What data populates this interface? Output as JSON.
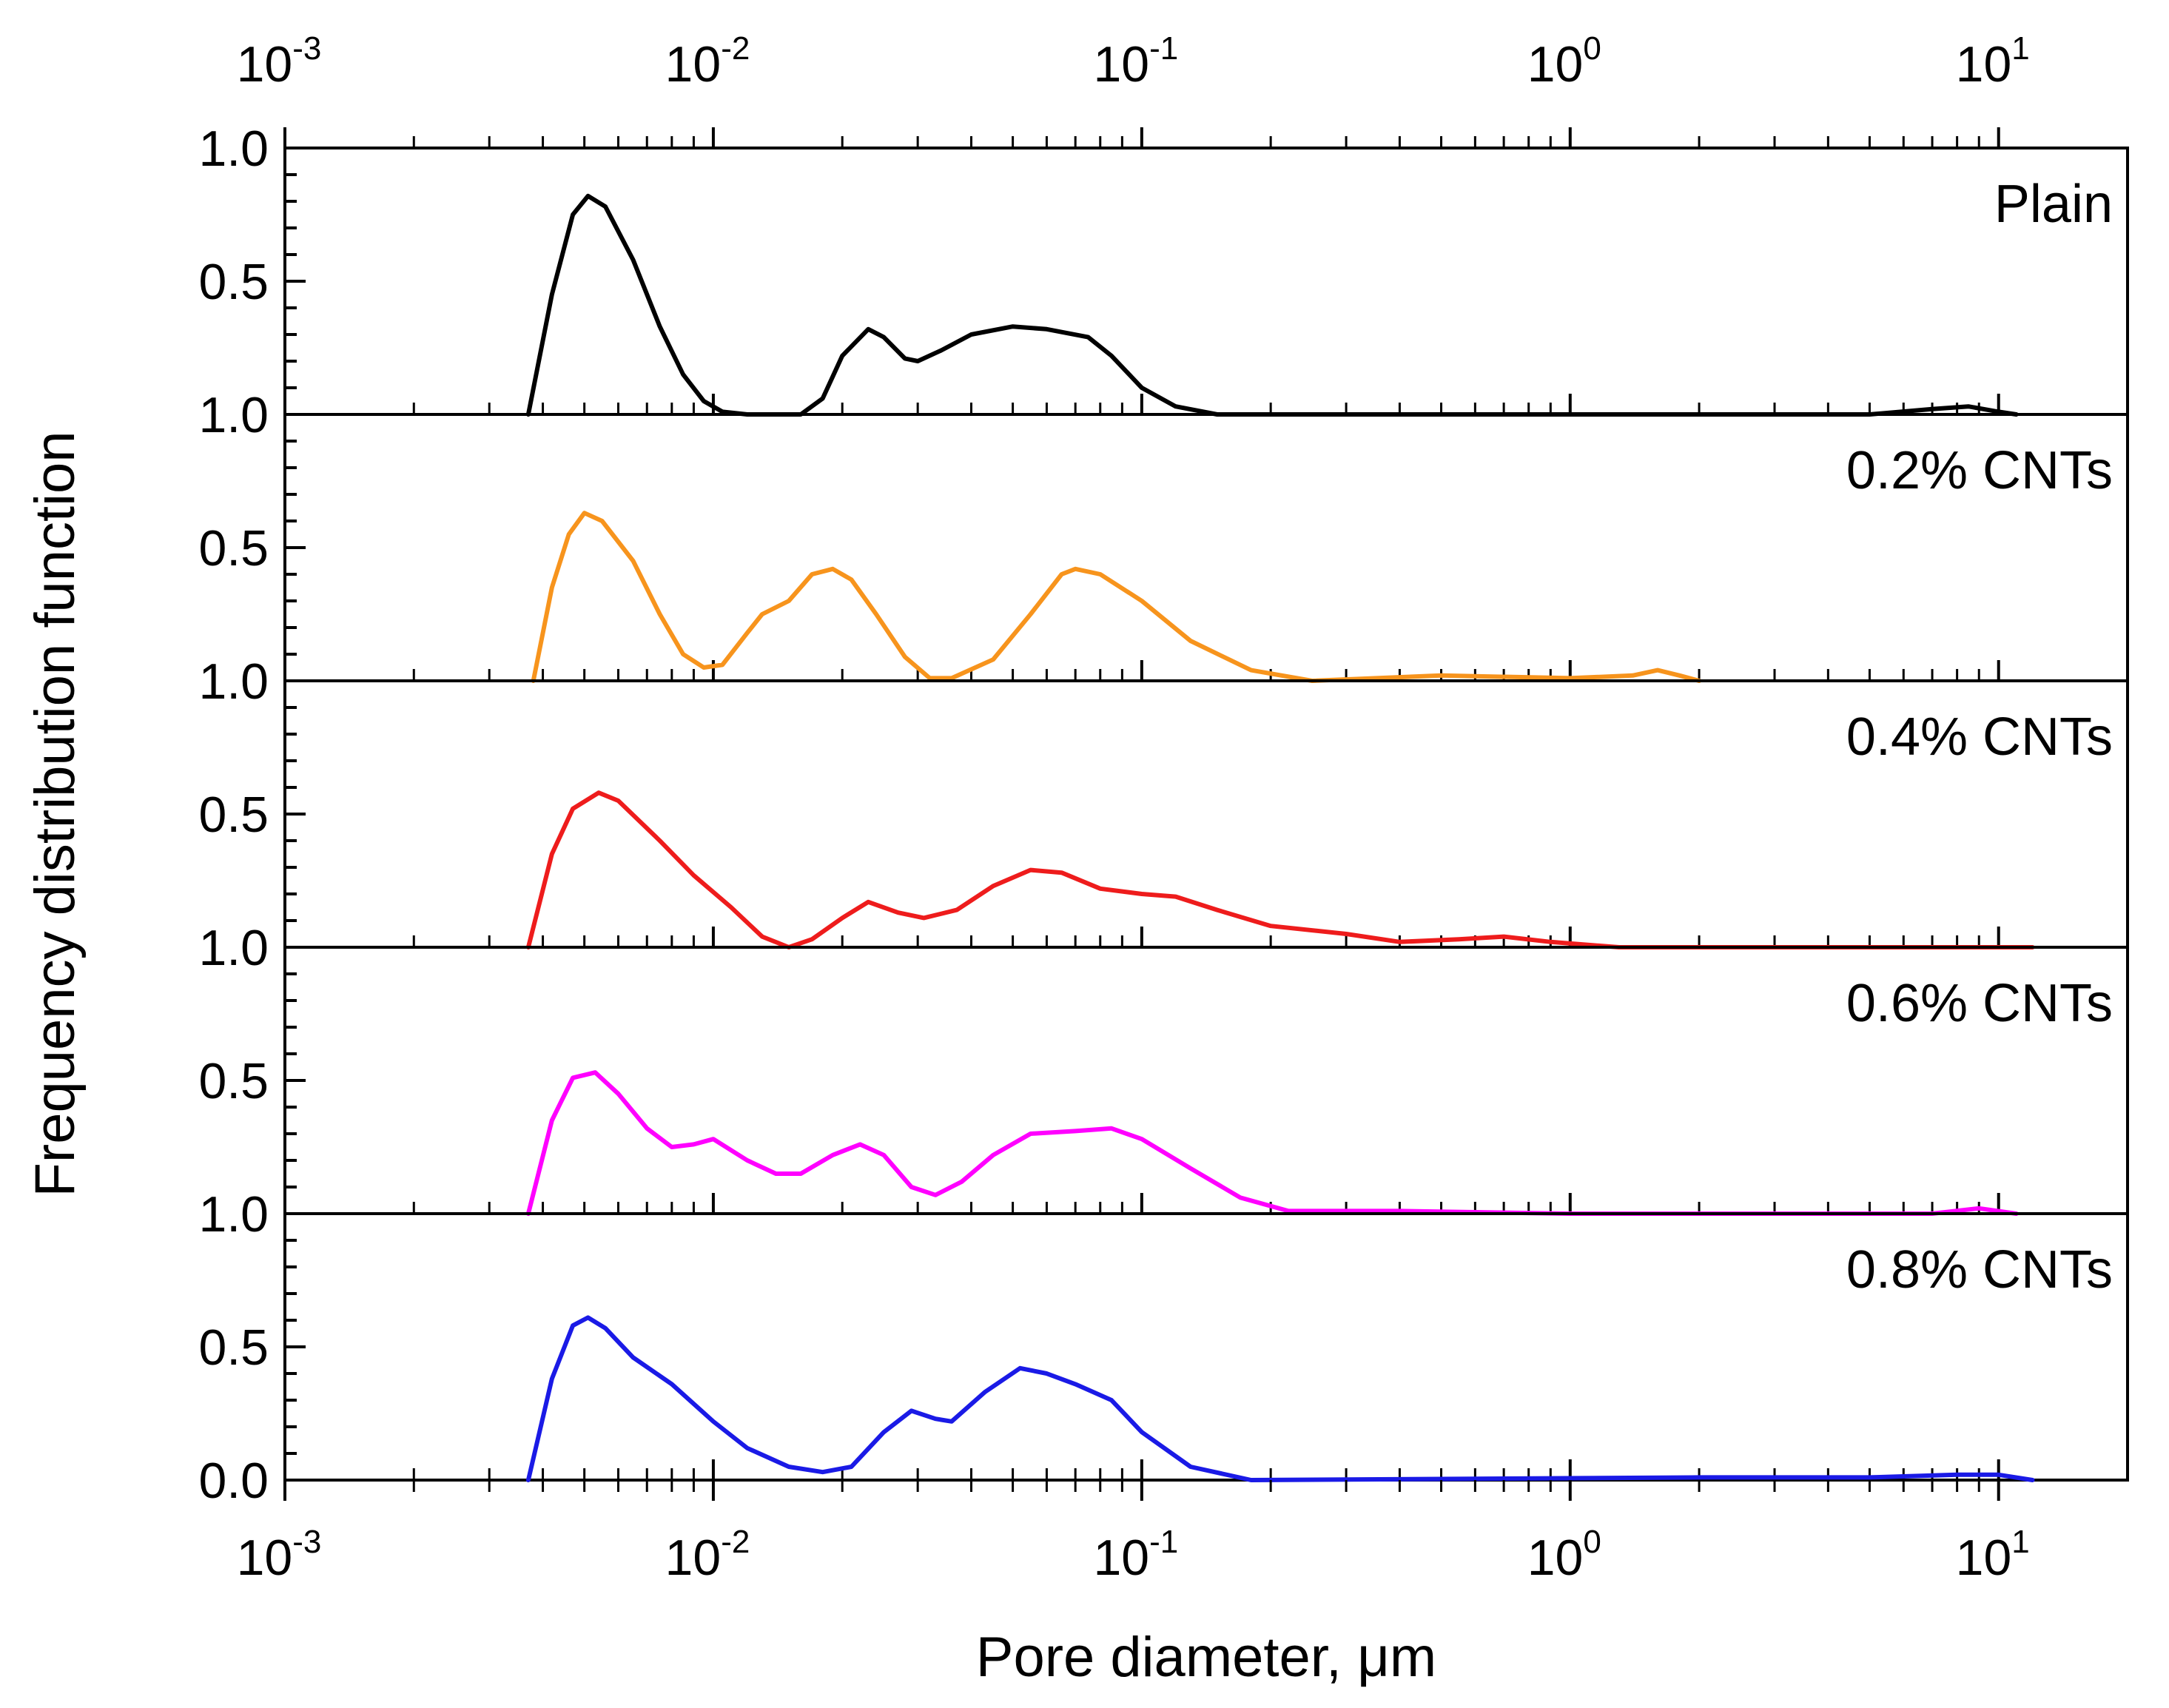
{
  "chart_data": {
    "type": "line",
    "layout": "stacked-panels",
    "xscale": "log",
    "xlim": [
      0.001,
      20
    ],
    "xlabel": "Pore diameter, μm",
    "ylabel": "Frequency distribution function",
    "x_ticks": [
      {
        "base": "10",
        "exp": "-3"
      },
      {
        "base": "10",
        "exp": "-2"
      },
      {
        "base": "10",
        "exp": "-1"
      },
      {
        "base": "10",
        "exp": "0"
      },
      {
        "base": "10",
        "exp": "1"
      }
    ],
    "x_tick_values": [
      0.001,
      0.01,
      0.1,
      1,
      10
    ],
    "ylim": [
      0,
      1.0
    ],
    "y_tick_values": [
      0,
      0.5,
      1.0
    ],
    "y_tick_labels_per_panel": [
      [
        "1.0",
        "0.5",
        "1.0"
      ],
      [
        "0.5",
        "1.0"
      ],
      [
        "0.5",
        "1.0"
      ],
      [
        "0.5",
        "1.0"
      ],
      [
        "0.5",
        "0.0"
      ]
    ],
    "series": [
      {
        "name": "Plain",
        "color": "#000000",
        "points": [
          [
            0.0037,
            0
          ],
          [
            0.0042,
            0.45
          ],
          [
            0.0047,
            0.75
          ],
          [
            0.0051,
            0.82
          ],
          [
            0.0056,
            0.78
          ],
          [
            0.0065,
            0.58
          ],
          [
            0.0075,
            0.33
          ],
          [
            0.0085,
            0.15
          ],
          [
            0.0095,
            0.05
          ],
          [
            0.0105,
            0.01
          ],
          [
            0.012,
            0
          ],
          [
            0.016,
            0
          ],
          [
            0.018,
            0.06
          ],
          [
            0.02,
            0.22
          ],
          [
            0.023,
            0.32
          ],
          [
            0.025,
            0.29
          ],
          [
            0.028,
            0.21
          ],
          [
            0.03,
            0.2
          ],
          [
            0.034,
            0.24
          ],
          [
            0.04,
            0.3
          ],
          [
            0.05,
            0.33
          ],
          [
            0.06,
            0.32
          ],
          [
            0.075,
            0.29
          ],
          [
            0.085,
            0.22
          ],
          [
            0.1,
            0.1
          ],
          [
            0.12,
            0.03
          ],
          [
            0.15,
            0
          ],
          [
            5,
            0
          ],
          [
            7,
            0.02
          ],
          [
            8.5,
            0.03
          ],
          [
            10,
            0.01
          ],
          [
            11,
            0
          ]
        ]
      },
      {
        "name": "0.2% CNTs",
        "color": "#f7941d",
        "points": [
          [
            0.0038,
            0
          ],
          [
            0.0042,
            0.35
          ],
          [
            0.0046,
            0.55
          ],
          [
            0.005,
            0.63
          ],
          [
            0.0055,
            0.6
          ],
          [
            0.0065,
            0.45
          ],
          [
            0.0075,
            0.25
          ],
          [
            0.0085,
            0.1
          ],
          [
            0.0095,
            0.05
          ],
          [
            0.0105,
            0.06
          ],
          [
            0.012,
            0.18
          ],
          [
            0.013,
            0.25
          ],
          [
            0.015,
            0.3
          ],
          [
            0.017,
            0.4
          ],
          [
            0.019,
            0.42
          ],
          [
            0.021,
            0.38
          ],
          [
            0.024,
            0.25
          ],
          [
            0.028,
            0.09
          ],
          [
            0.032,
            0.01
          ],
          [
            0.036,
            0.01
          ],
          [
            0.045,
            0.08
          ],
          [
            0.055,
            0.25
          ],
          [
            0.065,
            0.4
          ],
          [
            0.07,
            0.42
          ],
          [
            0.08,
            0.4
          ],
          [
            0.1,
            0.3
          ],
          [
            0.13,
            0.15
          ],
          [
            0.18,
            0.04
          ],
          [
            0.25,
            0
          ],
          [
            0.5,
            0.02
          ],
          [
            1.0,
            0.01
          ],
          [
            1.4,
            0.02
          ],
          [
            1.6,
            0.04
          ],
          [
            1.8,
            0.02
          ],
          [
            2.0,
            0
          ]
        ]
      },
      {
        "name": "0.4% CNTs",
        "color": "#ee1c1c",
        "points": [
          [
            0.0037,
            0
          ],
          [
            0.0042,
            0.35
          ],
          [
            0.0047,
            0.52
          ],
          [
            0.0054,
            0.58
          ],
          [
            0.006,
            0.55
          ],
          [
            0.0075,
            0.4
          ],
          [
            0.009,
            0.27
          ],
          [
            0.011,
            0.15
          ],
          [
            0.013,
            0.04
          ],
          [
            0.015,
            0
          ],
          [
            0.017,
            0.03
          ],
          [
            0.02,
            0.11
          ],
          [
            0.023,
            0.17
          ],
          [
            0.027,
            0.13
          ],
          [
            0.031,
            0.11
          ],
          [
            0.037,
            0.14
          ],
          [
            0.045,
            0.23
          ],
          [
            0.055,
            0.29
          ],
          [
            0.065,
            0.28
          ],
          [
            0.08,
            0.22
          ],
          [
            0.1,
            0.2
          ],
          [
            0.12,
            0.19
          ],
          [
            0.15,
            0.14
          ],
          [
            0.2,
            0.08
          ],
          [
            0.3,
            0.05
          ],
          [
            0.4,
            0.02
          ],
          [
            0.55,
            0.03
          ],
          [
            0.7,
            0.04
          ],
          [
            0.9,
            0.02
          ],
          [
            1.3,
            0
          ],
          [
            12,
            0
          ]
        ]
      },
      {
        "name": "0.6% CNTs",
        "color": "#ff00ff",
        "points": [
          [
            0.0037,
            0
          ],
          [
            0.0042,
            0.35
          ],
          [
            0.0047,
            0.51
          ],
          [
            0.0053,
            0.53
          ],
          [
            0.006,
            0.45
          ],
          [
            0.007,
            0.32
          ],
          [
            0.008,
            0.25
          ],
          [
            0.009,
            0.26
          ],
          [
            0.01,
            0.28
          ],
          [
            0.012,
            0.2
          ],
          [
            0.014,
            0.15
          ],
          [
            0.016,
            0.15
          ],
          [
            0.019,
            0.22
          ],
          [
            0.022,
            0.26
          ],
          [
            0.025,
            0.22
          ],
          [
            0.029,
            0.1
          ],
          [
            0.033,
            0.07
          ],
          [
            0.038,
            0.12
          ],
          [
            0.045,
            0.22
          ],
          [
            0.055,
            0.3
          ],
          [
            0.07,
            0.31
          ],
          [
            0.085,
            0.32
          ],
          [
            0.1,
            0.28
          ],
          [
            0.13,
            0.17
          ],
          [
            0.17,
            0.06
          ],
          [
            0.22,
            0.01
          ],
          [
            0.4,
            0.01
          ],
          [
            1,
            0
          ],
          [
            7,
            0
          ],
          [
            9,
            0.02
          ],
          [
            11,
            0
          ]
        ]
      },
      {
        "name": "0.8% CNTs",
        "color": "#1a1ae6",
        "points": [
          [
            0.0037,
            0
          ],
          [
            0.0042,
            0.38
          ],
          [
            0.0047,
            0.58
          ],
          [
            0.0051,
            0.61
          ],
          [
            0.0056,
            0.57
          ],
          [
            0.0065,
            0.46
          ],
          [
            0.008,
            0.36
          ],
          [
            0.01,
            0.22
          ],
          [
            0.012,
            0.12
          ],
          [
            0.015,
            0.05
          ],
          [
            0.018,
            0.03
          ],
          [
            0.021,
            0.05
          ],
          [
            0.025,
            0.18
          ],
          [
            0.029,
            0.26
          ],
          [
            0.033,
            0.23
          ],
          [
            0.036,
            0.22
          ],
          [
            0.043,
            0.33
          ],
          [
            0.052,
            0.42
          ],
          [
            0.06,
            0.4
          ],
          [
            0.07,
            0.36
          ],
          [
            0.085,
            0.3
          ],
          [
            0.1,
            0.18
          ],
          [
            0.13,
            0.05
          ],
          [
            0.18,
            0
          ],
          [
            2,
            0.01
          ],
          [
            5,
            0.01
          ],
          [
            8,
            0.02
          ],
          [
            10,
            0.02
          ],
          [
            12,
            0
          ]
        ]
      }
    ]
  }
}
